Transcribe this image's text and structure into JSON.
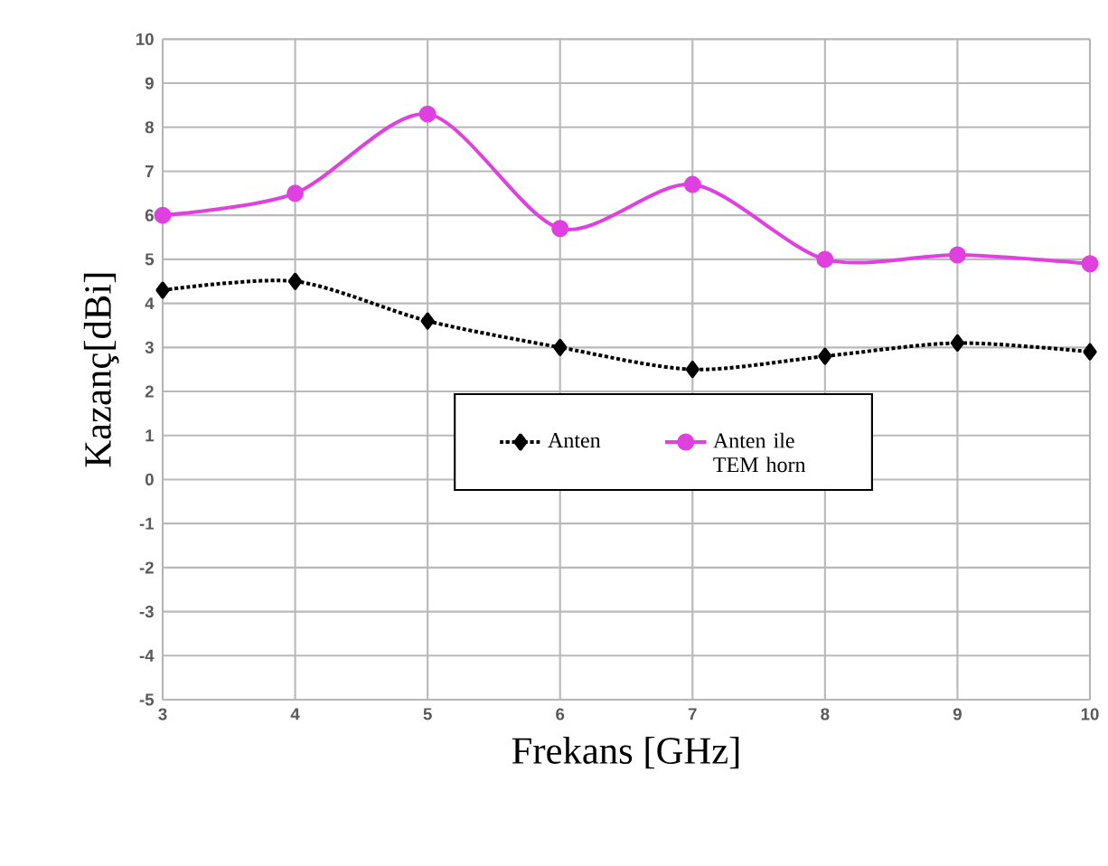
{
  "chart_data": {
    "type": "line",
    "xlabel": "Frekans [GHz]",
    "ylabel": "Kazanç[dBi]",
    "x": [
      3,
      4,
      5,
      6,
      7,
      8,
      9,
      10
    ],
    "series": [
      {
        "name": "Anten",
        "color": "#000000",
        "marker": "diamond",
        "line_style": "dotted",
        "values": [
          4.3,
          4.5,
          3.6,
          3.0,
          2.5,
          2.8,
          3.1,
          2.9
        ]
      },
      {
        "name": "Anten ile TEM horn",
        "color": "#e040e0",
        "marker": "circle",
        "line_style": "solid",
        "values": [
          6.0,
          6.5,
          8.3,
          5.7,
          6.7,
          5.0,
          5.1,
          4.9
        ]
      }
    ],
    "xlim": [
      3,
      10
    ],
    "ylim": [
      -5,
      10
    ],
    "xticks": [
      3,
      4,
      5,
      6,
      7,
      8,
      9,
      10
    ],
    "yticks": [
      -5,
      -4,
      -3,
      -2,
      -1,
      0,
      1,
      2,
      3,
      4,
      5,
      6,
      7,
      8,
      9,
      10
    ],
    "grid": true,
    "legend": "center"
  }
}
